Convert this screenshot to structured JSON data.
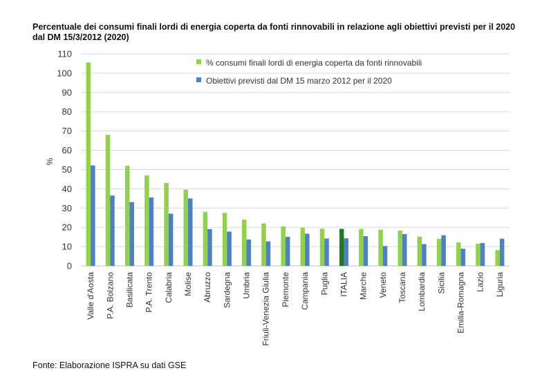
{
  "title_line1": "Percentuale dei consumi finali lordi di energia coperta da fonti rinnovabili in relazione agli obiettivi previsti per il 2020",
  "title_line2": "dal DM 15/3/2012 (2020)",
  "source": "Fonte: Elaborazione ISPRA su dati GSE",
  "chart_data": {
    "type": "bar",
    "ylabel": "%",
    "ylim": [
      0,
      110
    ],
    "yticks": [
      0,
      10,
      20,
      30,
      40,
      50,
      60,
      70,
      80,
      90,
      100,
      110
    ],
    "grid": "horizontal",
    "legend_position": "top-right",
    "colors": {
      "green": "#92d050",
      "green_highlight": "#1e7b1e",
      "blue": "#4f81bd"
    },
    "highlight_category": "ITALIA",
    "categories": [
      "Valle d'Aosta",
      "P.A. Bolzano",
      "Basilicata",
      "P.A. Trento",
      "Calabria",
      "Molise",
      "Abruzzo",
      "Sardegna",
      "Umbria",
      "Friuli-Venezia Giulia",
      "Piemonte",
      "Campania",
      "Puglia",
      "ITALIA",
      "Marche",
      "Veneto",
      "Toscana",
      "Lombardia",
      "Sicilia",
      "Emilia-Romagna",
      "Lazio",
      "Liguria"
    ],
    "series": [
      {
        "name": "% consumi finali lordi di energia coperta da fonti rinnovabili",
        "color": "#92d050",
        "values": [
          105.5,
          68,
          52,
          47,
          43,
          39.5,
          28,
          27.5,
          24,
          22,
          20.5,
          19.8,
          19.3,
          19.2,
          19.2,
          18.8,
          18.3,
          15.2,
          14,
          12.2,
          11.5,
          8.2
        ]
      },
      {
        "name": "Obiettivi previsti dal DM 15 marzo 2012 per il 2020",
        "color": "#4f81bd",
        "values": [
          52.1,
          36.5,
          33.1,
          35.5,
          27.1,
          35,
          19.1,
          17.8,
          13.7,
          12.7,
          15.1,
          16.7,
          14.2,
          14.3,
          15.4,
          10.3,
          16.5,
          11.3,
          15.9,
          8.9,
          11.9,
          14.1
        ]
      }
    ]
  }
}
